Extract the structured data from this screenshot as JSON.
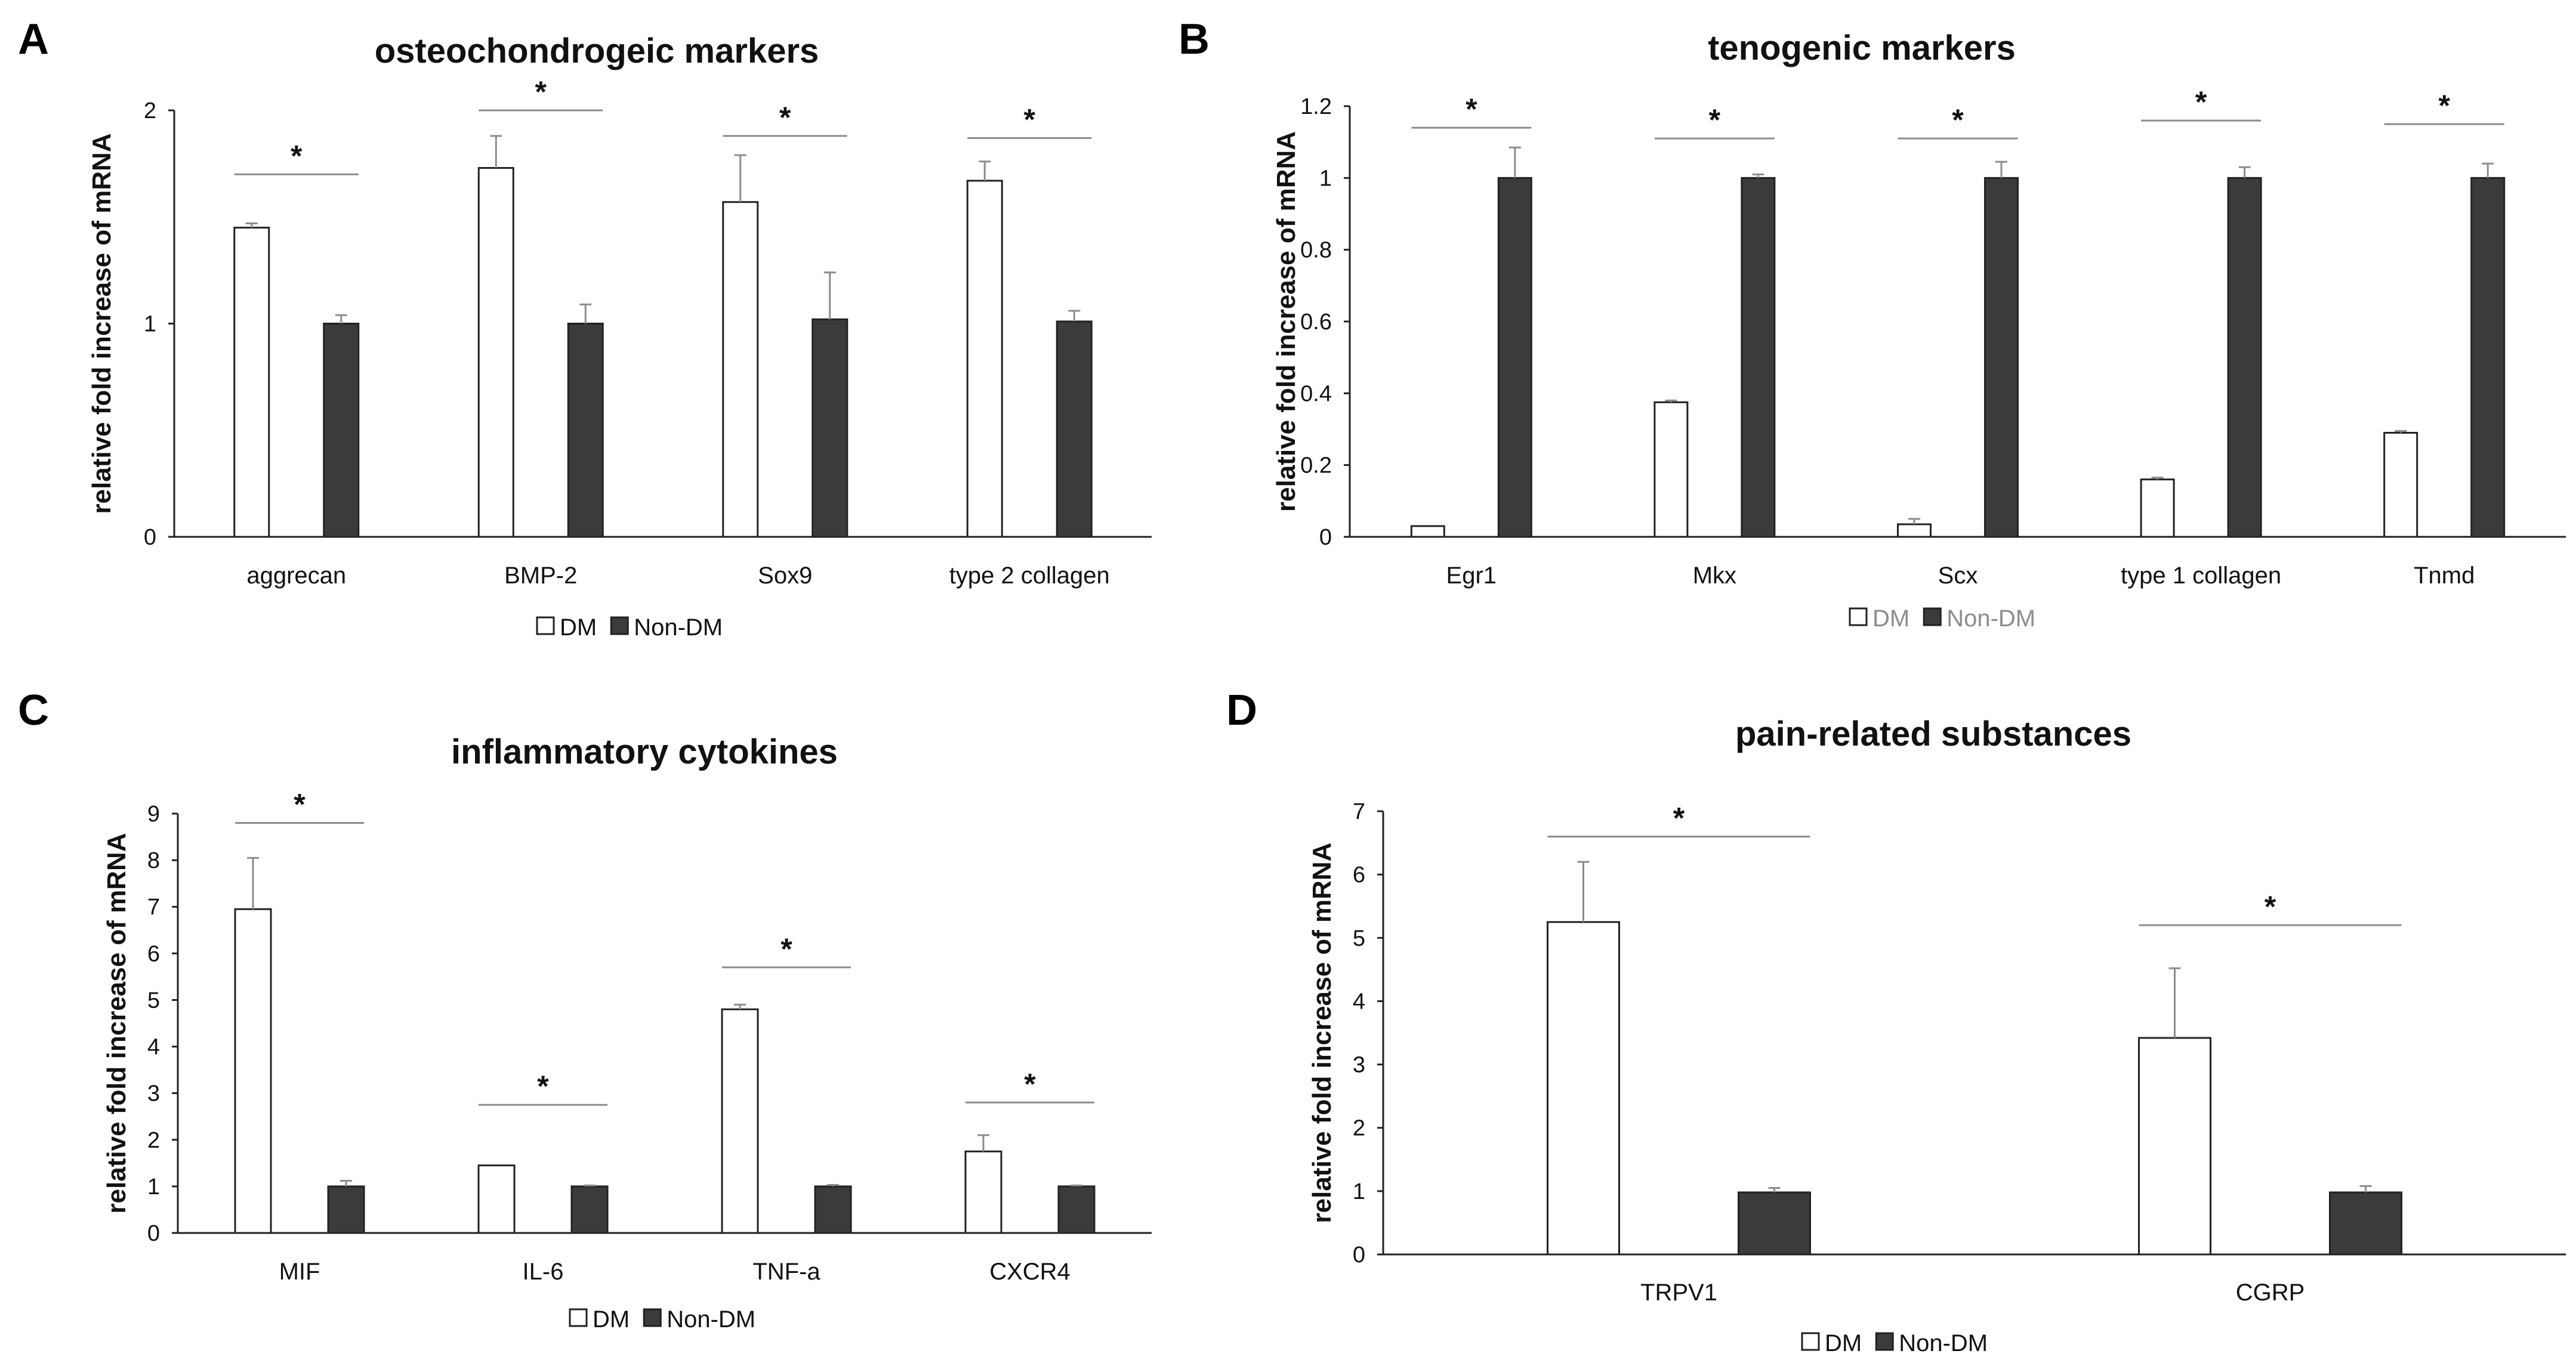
{
  "colors": {
    "dm_fill": "#ffffff",
    "nondm_fill": "#3b3b3b",
    "bar_stroke": "#222222",
    "axis": "#222222",
    "error": "#8c8c8c",
    "sig_line": "#8c8c8c"
  },
  "legend": {
    "dm": "DM",
    "nondm": "Non-DM"
  },
  "chart_data": [
    {
      "panel": "A",
      "type": "bar",
      "title": "osteochondrogeic markers",
      "ylabel": "relative fold increase of mRNA",
      "xlabel": "",
      "ylim": [
        0,
        2
      ],
      "yticks": [
        0,
        1,
        2
      ],
      "ytick_labels": [
        "0",
        "1",
        "2"
      ],
      "categories": [
        "aggrecan",
        "BMP-2",
        "Sox9",
        "type 2 collagen"
      ],
      "series": [
        {
          "name": "DM",
          "values": [
            1.45,
            1.73,
            1.57,
            1.67
          ],
          "errors": [
            0.02,
            0.15,
            0.22,
            0.09
          ]
        },
        {
          "name": "Non-DM",
          "values": [
            1.0,
            1.0,
            1.02,
            1.01
          ],
          "errors": [
            0.04,
            0.09,
            0.22,
            0.05
          ]
        }
      ],
      "significance": [
        {
          "category": 0,
          "y": 1.7,
          "label": "*"
        },
        {
          "category": 1,
          "y": 2.0,
          "label": "*"
        },
        {
          "category": 2,
          "y": 1.88,
          "label": "*"
        },
        {
          "category": 3,
          "y": 1.87,
          "label": "*"
        }
      ],
      "legend_color": "normal"
    },
    {
      "panel": "B",
      "type": "bar",
      "title": "tenogenic markers",
      "ylabel": "relative fold increase of mRNA",
      "xlabel": "",
      "ylim": [
        0,
        1.2
      ],
      "yticks": [
        0,
        0.2,
        0.4,
        0.6,
        0.8,
        1.0,
        1.2
      ],
      "ytick_labels": [
        "0",
        "0.2",
        "0.4",
        "0.6",
        "0.8",
        "1",
        "1.2"
      ],
      "categories": [
        "Egr1",
        "Mkx",
        "Scx",
        "type 1 collagen",
        "Tnmd"
      ],
      "series": [
        {
          "name": "DM",
          "values": [
            0.03,
            0.375,
            0.035,
            0.16,
            0.29
          ],
          "errors": [
            0.0,
            0.005,
            0.015,
            0.005,
            0.005
          ]
        },
        {
          "name": "Non-DM",
          "values": [
            1.0,
            1.0,
            1.0,
            1.0,
            1.0
          ],
          "errors": [
            0.085,
            0.01,
            0.045,
            0.03,
            0.04
          ]
        }
      ],
      "significance": [
        {
          "category": 0,
          "y": 1.14,
          "label": "*"
        },
        {
          "category": 1,
          "y": 1.11,
          "label": "*"
        },
        {
          "category": 2,
          "y": 1.11,
          "label": "*"
        },
        {
          "category": 3,
          "y": 1.16,
          "label": "*"
        },
        {
          "category": 4,
          "y": 1.15,
          "label": "*"
        }
      ],
      "legend_color": "grey"
    },
    {
      "panel": "C",
      "type": "bar",
      "title": "inflammatory cytokines",
      "ylabel": "relative fold increase of mRNA",
      "xlabel": "",
      "ylim": [
        0,
        9
      ],
      "yticks": [
        0,
        1,
        2,
        3,
        4,
        5,
        6,
        7,
        8,
        9
      ],
      "ytick_labels": [
        "0",
        "1",
        "2",
        "3",
        "4",
        "5",
        "6",
        "7",
        "8",
        "9"
      ],
      "categories": [
        "MIF",
        "IL-6",
        "TNF-a",
        "CXCR4"
      ],
      "series": [
        {
          "name": "DM",
          "values": [
            6.95,
            1.45,
            4.8,
            1.75
          ],
          "errors": [
            1.1,
            0.0,
            0.1,
            0.35
          ]
        },
        {
          "name": "Non-DM",
          "values": [
            1.0,
            1.0,
            1.0,
            1.0
          ],
          "errors": [
            0.12,
            0.02,
            0.03,
            0.02
          ]
        }
      ],
      "significance": [
        {
          "category": 0,
          "y": 8.8,
          "label": "*"
        },
        {
          "category": 1,
          "y": 2.75,
          "label": "*"
        },
        {
          "category": 2,
          "y": 5.7,
          "label": "*"
        },
        {
          "category": 3,
          "y": 2.8,
          "label": "*"
        }
      ],
      "legend_color": "normal"
    },
    {
      "panel": "D",
      "type": "bar",
      "title": "pain-related substances",
      "ylabel": "relative fold increase of mRNA",
      "xlabel": "",
      "ylim": [
        0,
        7
      ],
      "yticks": [
        0,
        1,
        2,
        3,
        4,
        5,
        6,
        7
      ],
      "ytick_labels": [
        "0",
        "1",
        "2",
        "3",
        "4",
        "5",
        "6",
        "7"
      ],
      "categories": [
        "TRPV1",
        "CGRP"
      ],
      "series": [
        {
          "name": "DM",
          "values": [
            5.25,
            3.42
          ],
          "errors": [
            0.95,
            1.1
          ]
        },
        {
          "name": "Non-DM",
          "values": [
            0.98,
            0.98
          ],
          "errors": [
            0.07,
            0.1
          ]
        }
      ],
      "significance": [
        {
          "category": 0,
          "y": 6.6,
          "label": "*"
        },
        {
          "category": 1,
          "y": 5.2,
          "label": "*"
        }
      ],
      "legend_color": "normal"
    }
  ]
}
